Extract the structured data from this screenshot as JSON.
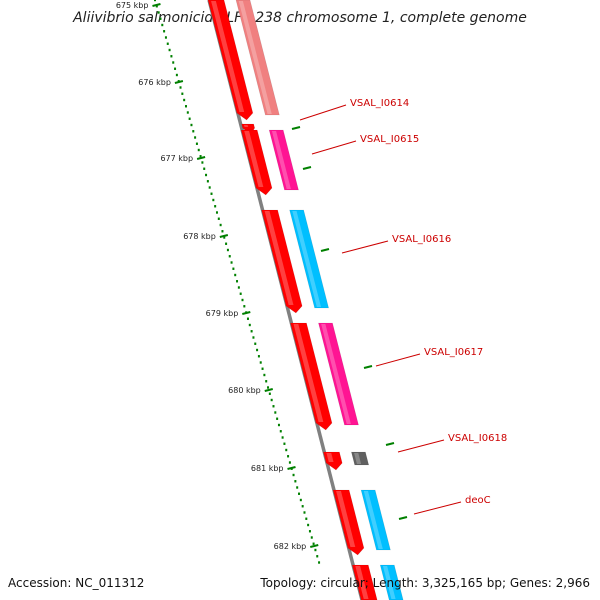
{
  "title": "Aliivibrio salmonicida LFI1238 chromosome 1, complete genome",
  "footer": {
    "accession": "Accession: NC_011312",
    "stats": "Topology: circular; Length: 3,325,165 bp; Genes: 2,966"
  },
  "scale_ticks": [
    "675 kbp",
    "676 kbp",
    "677 kbp",
    "678 kbp",
    "679 kbp",
    "680 kbp",
    "681 kbp",
    "682 kbp"
  ],
  "gene_labels": [
    "VSAL_I0614",
    "VSAL_I0615",
    "VSAL_I0616",
    "VSAL_I0617",
    "VSAL_I0618",
    "deoC"
  ],
  "colors": {
    "backbone": "#808080",
    "scale": "#008000",
    "label": "#cc0000",
    "cds": "#ff0000",
    "feature_salmon": "#f08080",
    "feature_magenta": "#ff1493",
    "feature_cyan": "#00bfff",
    "feature_gray": "#606060"
  }
}
